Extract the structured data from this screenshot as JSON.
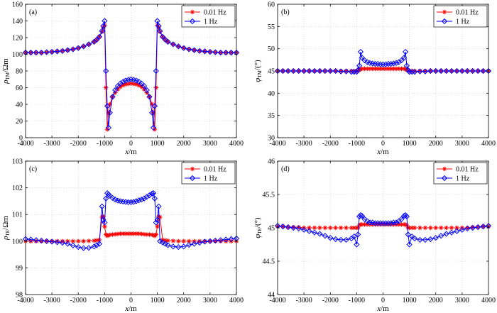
{
  "chart_data": [
    {
      "type": "line",
      "panel_label": "(a)",
      "xlabel": "x/m",
      "ylabel": "ρTM/Ωm",
      "xlim": [
        -4000,
        4000
      ],
      "ylim": [
        0,
        160
      ],
      "xticks": [
        -4000,
        -3000,
        -2000,
        -1000,
        0,
        1000,
        2000,
        3000,
        4000
      ],
      "yticks": [
        0,
        20,
        40,
        60,
        80,
        100,
        120,
        140,
        160
      ],
      "x": [
        -4000,
        -3800,
        -3600,
        -3400,
        -3200,
        -3000,
        -2800,
        -2600,
        -2400,
        -2200,
        -2000,
        -1800,
        -1600,
        -1400,
        -1300,
        -1200,
        -1100,
        -1050,
        -1000,
        -950,
        -900,
        -850,
        -800,
        -700,
        -600,
        -500,
        -400,
        -300,
        -200,
        -100,
        0,
        100,
        200,
        300,
        400,
        500,
        600,
        700,
        800,
        850,
        900,
        950,
        1000,
        1050,
        1100,
        1200,
        1300,
        1400,
        1600,
        1800,
        2000,
        2200,
        2400,
        2600,
        2800,
        3000,
        3200,
        3400,
        3600,
        3800,
        4000
      ],
      "legend": [
        "0.01 Hz",
        "1 Hz"
      ],
      "legend_position": "top-right",
      "grid": true,
      "series": [
        {
          "name": "0.01 Hz",
          "color": "#ff0000",
          "marker": "star",
          "values": [
            102,
            102,
            102,
            102,
            102.5,
            103,
            103.5,
            104,
            105,
            106,
            107.5,
            109.5,
            112,
            115,
            117.5,
            121,
            127,
            132,
            135,
            60,
            10,
            30,
            40,
            49,
            54,
            58,
            61,
            63,
            64,
            64.5,
            65,
            64.5,
            64,
            63,
            61,
            58,
            54,
            49,
            40,
            30,
            10,
            60,
            135,
            132,
            127,
            121,
            117.5,
            115,
            112,
            109.5,
            107.5,
            106,
            105,
            104,
            103.5,
            103,
            102.5,
            102,
            102,
            102,
            102
          ]
        },
        {
          "name": "1 Hz",
          "color": "#0000ff",
          "marker": "diamond",
          "values": [
            102,
            102,
            102,
            102,
            102.5,
            103,
            103.5,
            104,
            105,
            106,
            107.5,
            109.5,
            112,
            115,
            117.5,
            121,
            128,
            134,
            140,
            80,
            38,
            12,
            30,
            49,
            57,
            62,
            65,
            67,
            68.5,
            69.5,
            70,
            69.5,
            68.5,
            67,
            65,
            62,
            57,
            49,
            30,
            12,
            38,
            80,
            140,
            134,
            128,
            121,
            117.5,
            115,
            112,
            109.5,
            107.5,
            106,
            105,
            104,
            103.5,
            103,
            102.5,
            102,
            102,
            102,
            102
          ]
        }
      ]
    },
    {
      "type": "line",
      "panel_label": "(b)",
      "xlabel": "x/m",
      "ylabel": "φTM/(°)",
      "xlim": [
        -4000,
        4000
      ],
      "ylim": [
        30,
        60
      ],
      "xticks": [
        -4000,
        -3000,
        -2000,
        -1000,
        0,
        1000,
        2000,
        3000,
        4000
      ],
      "yticks": [
        30,
        35,
        40,
        45,
        50,
        55,
        60
      ],
      "x": [
        -4000,
        -3800,
        -3600,
        -3400,
        -3200,
        -3000,
        -2800,
        -2600,
        -2400,
        -2200,
        -2000,
        -1800,
        -1600,
        -1400,
        -1200,
        -1100,
        -1000,
        -950,
        -900,
        -850,
        -800,
        -700,
        -600,
        -500,
        -400,
        -300,
        -200,
        -100,
        0,
        100,
        200,
        300,
        400,
        500,
        600,
        700,
        800,
        850,
        900,
        950,
        1000,
        1100,
        1200,
        1400,
        1600,
        1800,
        2000,
        2200,
        2400,
        2600,
        2800,
        3000,
        3200,
        3400,
        3600,
        3800,
        4000
      ],
      "legend": [
        "0.01 Hz",
        "1 Hz"
      ],
      "legend_position": "top-right",
      "grid": true,
      "series": [
        {
          "name": "0.01 Hz",
          "color": "#ff0000",
          "marker": "star",
          "values": [
            45,
            45,
            45,
            45,
            45,
            45,
            45,
            45,
            45,
            45,
            45,
            45,
            45,
            45,
            45,
            45,
            45,
            45.1,
            45.2,
            45.4,
            45.5,
            45.5,
            45.5,
            45.5,
            45.5,
            45.5,
            45.5,
            45.5,
            45.5,
            45.5,
            45.5,
            45.5,
            45.5,
            45.5,
            45.5,
            45.5,
            45.5,
            45.4,
            45.2,
            45.1,
            45,
            45,
            45,
            45,
            45,
            45,
            45,
            45,
            45,
            45,
            45,
            45,
            45,
            45,
            45,
            45,
            45
          ]
        },
        {
          "name": "1 Hz",
          "color": "#0000ff",
          "marker": "diamond",
          "values": [
            45,
            45,
            45,
            45,
            45,
            45,
            45,
            45,
            45,
            45,
            45,
            45,
            44.9,
            44.9,
            44.8,
            44.8,
            44.8,
            45.2,
            46.2,
            49.3,
            48,
            47.4,
            47,
            46.8,
            46.7,
            46.6,
            46.6,
            46.5,
            46.5,
            46.5,
            46.6,
            46.6,
            46.7,
            46.8,
            47,
            47.4,
            48,
            49.3,
            46.2,
            45.2,
            44.8,
            44.8,
            44.8,
            44.9,
            44.9,
            45,
            45,
            45,
            45,
            45,
            45,
            45,
            45,
            45,
            45,
            45,
            45
          ]
        }
      ]
    },
    {
      "type": "line",
      "panel_label": "(c)",
      "xlabel": "x/m",
      "ylabel": "ρTE/Ωm",
      "xlim": [
        -4000,
        4000
      ],
      "ylim": [
        98,
        103
      ],
      "xticks": [
        -4000,
        -3000,
        -2000,
        -1000,
        0,
        1000,
        2000,
        3000,
        4000
      ],
      "yticks": [
        98,
        99,
        100,
        101,
        102,
        103
      ],
      "x": [
        -4000,
        -3800,
        -3600,
        -3400,
        -3200,
        -3000,
        -2800,
        -2600,
        -2400,
        -2200,
        -2000,
        -1800,
        -1600,
        -1400,
        -1300,
        -1200,
        -1100,
        -1050,
        -1000,
        -950,
        -900,
        -850,
        -800,
        -700,
        -600,
        -500,
        -400,
        -300,
        -200,
        -100,
        0,
        100,
        200,
        300,
        400,
        500,
        600,
        700,
        800,
        850,
        900,
        950,
        1000,
        1050,
        1100,
        1200,
        1300,
        1400,
        1600,
        1800,
        2000,
        2200,
        2400,
        2600,
        2800,
        3000,
        3200,
        3400,
        3600,
        3800,
        4000
      ],
      "legend": [
        "0.01 Hz",
        "1 Hz"
      ],
      "legend_position": "top-right",
      "grid": true,
      "series": [
        {
          "name": "0.01 Hz",
          "color": "#ff0000",
          "marker": "star",
          "values": [
            100,
            100,
            100,
            100,
            100,
            100,
            100,
            100,
            100,
            100,
            100,
            100,
            100.01,
            100.02,
            100.03,
            100.05,
            100.9,
            100.92,
            100.55,
            100.25,
            100.2,
            100.22,
            100.24,
            100.25,
            100.26,
            100.27,
            100.28,
            100.28,
            100.28,
            100.28,
            100.28,
            100.28,
            100.28,
            100.28,
            100.27,
            100.26,
            100.25,
            100.25,
            100.24,
            100.22,
            100.2,
            100.25,
            100.55,
            100.92,
            100.9,
            100.05,
            100.03,
            100.02,
            100.01,
            100,
            100,
            100,
            100,
            100,
            100,
            100,
            100,
            100,
            100,
            100,
            100
          ]
        },
        {
          "name": "1 Hz",
          "color": "#0000ff",
          "marker": "diamond",
          "values": [
            100.08,
            100.06,
            100.04,
            100.02,
            100,
            99.98,
            99.96,
            99.94,
            99.9,
            99.84,
            99.78,
            99.74,
            99.75,
            99.8,
            99.85,
            99.9,
            101.3,
            100.8,
            100.7,
            101.6,
            101.8,
            101.75,
            101.7,
            101.62,
            101.56,
            101.52,
            101.5,
            101.48,
            101.47,
            101.46,
            101.46,
            101.47,
            101.5,
            101.53,
            101.56,
            101.6,
            101.66,
            101.72,
            101.78,
            101.8,
            101.6,
            100.7,
            100.8,
            101.3,
            100.0,
            99.95,
            99.9,
            99.85,
            99.8,
            99.78,
            99.8,
            99.86,
            99.9,
            99.94,
            99.98,
            100.0,
            100.02,
            100.04,
            100.06,
            100.08,
            100.1
          ]
        }
      ]
    },
    {
      "type": "line",
      "panel_label": "(d)",
      "xlabel": "x/m",
      "ylabel": "φTE/(°)",
      "xlim": [
        -4000,
        4000
      ],
      "ylim": [
        44,
        46
      ],
      "xticks": [
        -4000,
        -3000,
        -2000,
        -1000,
        0,
        1000,
        2000,
        3000,
        4000
      ],
      "yticks": [
        44,
        44.5,
        45,
        45.5,
        46
      ],
      "x": [
        -4000,
        -3800,
        -3600,
        -3400,
        -3200,
        -3000,
        -2800,
        -2600,
        -2400,
        -2200,
        -2000,
        -1800,
        -1600,
        -1400,
        -1200,
        -1100,
        -1000,
        -950,
        -900,
        -850,
        -800,
        -700,
        -600,
        -500,
        -400,
        -300,
        -200,
        -100,
        0,
        100,
        200,
        300,
        400,
        500,
        600,
        700,
        800,
        850,
        900,
        950,
        1000,
        1100,
        1200,
        1400,
        1600,
        1800,
        2000,
        2200,
        2400,
        2600,
        2800,
        3000,
        3200,
        3400,
        3600,
        3800,
        4000
      ],
      "legend": [
        "0.01 Hz",
        "1 Hz"
      ],
      "legend_position": "top-right",
      "grid": true,
      "series": [
        {
          "name": "0.01 Hz",
          "color": "#ff0000",
          "marker": "star",
          "values": [
            45.02,
            45.02,
            45.01,
            45.01,
            45.01,
            45,
            45,
            45,
            45,
            45,
            45,
            45,
            45,
            45,
            45,
            45,
            45,
            45,
            45.04,
            45.05,
            45.05,
            45.05,
            45.05,
            45.05,
            45.05,
            45.05,
            45.05,
            45.05,
            45.05,
            45.05,
            45.05,
            45.05,
            45.05,
            45.05,
            45.05,
            45.05,
            45.05,
            45.05,
            45.04,
            45,
            45,
            45,
            45,
            45,
            45,
            45,
            45,
            45,
            45,
            45,
            45,
            45,
            45,
            45.01,
            45.01,
            45.02,
            45.02
          ]
        },
        {
          "name": "1 Hz",
          "color": "#0000ff",
          "marker": "diamond",
          "values": [
            45.03,
            45.02,
            45.01,
            45,
            44.99,
            44.97,
            44.95,
            44.93,
            44.91,
            44.88,
            44.85,
            44.83,
            44.82,
            44.82,
            44.84,
            44.87,
            44.75,
            44.9,
            45.17,
            45.19,
            45.18,
            45.13,
            45.1,
            45.08,
            45.08,
            45.07,
            45.07,
            45.07,
            45.07,
            45.07,
            45.07,
            45.07,
            45.08,
            45.08,
            45.1,
            45.13,
            45.18,
            45.19,
            45.17,
            44.9,
            44.75,
            44.87,
            44.84,
            44.82,
            44.82,
            44.83,
            44.85,
            44.88,
            44.91,
            44.93,
            44.95,
            44.97,
            44.99,
            45,
            45.01,
            45.02,
            45.03
          ]
        }
      ]
    }
  ]
}
